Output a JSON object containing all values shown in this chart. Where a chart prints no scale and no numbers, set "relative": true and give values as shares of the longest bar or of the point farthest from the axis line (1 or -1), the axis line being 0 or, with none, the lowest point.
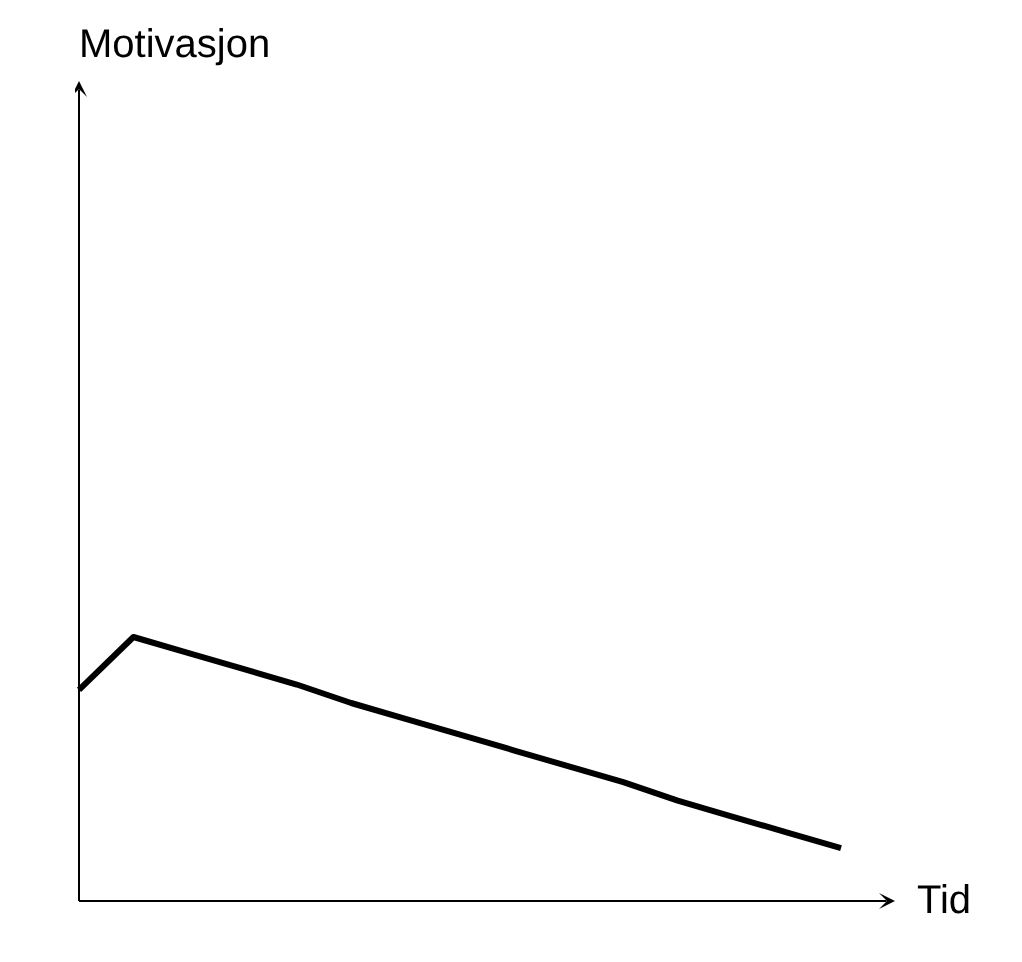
{
  "chart_data": {
    "type": "line",
    "xlabel": "Tid",
    "annotations": [
      "Motivasjon"
    ],
    "relative": true,
    "categories": [
      null,
      null,
      null,
      null,
      null,
      null,
      null,
      null,
      null,
      null,
      null,
      null,
      null,
      null,
      null
    ],
    "series": [
      {
        "color": "#000000",
        "values": [
          0.8,
          1,
          0.94,
          0.88,
          0.82,
          0.75,
          0.69,
          0.63,
          0.57,
          0.51,
          0.45,
          0.38,
          0.32,
          0.26,
          0.2
        ]
      }
    ],
    "line_style": "solid"
  }
}
